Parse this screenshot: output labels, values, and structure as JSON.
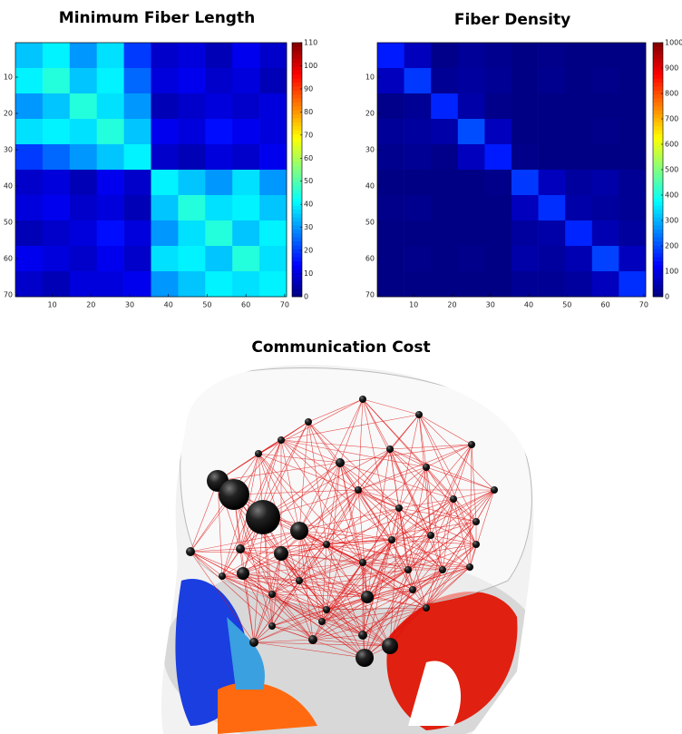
{
  "chart_data": [
    {
      "type": "heatmap",
      "title": "Minimum Fiber Length",
      "colormap": "jet",
      "xlim": [
        0.5,
        70.5
      ],
      "ylim": [
        70.5,
        0.5
      ],
      "zlim": [
        0,
        110
      ],
      "xticks": [
        10,
        20,
        30,
        40,
        50,
        60,
        70
      ],
      "yticks": [
        10,
        20,
        30,
        40,
        50,
        60,
        70
      ],
      "cticks": [
        0,
        10,
        20,
        30,
        40,
        50,
        60,
        70,
        80,
        90,
        100,
        110
      ],
      "z": [
        [
          35,
          40,
          30,
          38,
          20,
          8,
          10,
          6,
          12,
          8
        ],
        [
          40,
          45,
          35,
          40,
          25,
          10,
          12,
          8,
          10,
          6
        ],
        [
          30,
          35,
          45,
          38,
          30,
          6,
          8,
          10,
          8,
          10
        ],
        [
          38,
          40,
          38,
          45,
          35,
          12,
          10,
          15,
          12,
          10
        ],
        [
          20,
          25,
          30,
          35,
          40,
          8,
          6,
          10,
          8,
          12
        ],
        [
          8,
          10,
          6,
          12,
          8,
          40,
          35,
          30,
          38,
          30
        ],
        [
          10,
          12,
          8,
          10,
          6,
          35,
          45,
          38,
          40,
          35
        ],
        [
          6,
          8,
          10,
          15,
          10,
          30,
          38,
          45,
          35,
          40
        ],
        [
          12,
          10,
          8,
          12,
          8,
          38,
          40,
          35,
          45,
          38
        ],
        [
          8,
          6,
          10,
          10,
          12,
          30,
          35,
          40,
          38,
          40
        ]
      ]
    },
    {
      "type": "heatmap",
      "title": "Fiber Density",
      "colormap": "jet",
      "xlim": [
        0.5,
        70.5
      ],
      "ylim": [
        70.5,
        0.5
      ],
      "zlim": [
        0,
        1000
      ],
      "xticks": [
        10,
        20,
        30,
        40,
        50,
        60,
        70
      ],
      "yticks": [
        10,
        20,
        30,
        40,
        50,
        60,
        70
      ],
      "cticks": [
        0,
        100,
        200,
        300,
        400,
        500,
        600,
        700,
        800,
        900,
        1000
      ],
      "z": [
        [
          150,
          60,
          10,
          25,
          15,
          5,
          10,
          5,
          5,
          5
        ],
        [
          60,
          180,
          20,
          30,
          20,
          5,
          15,
          5,
          10,
          5
        ],
        [
          10,
          20,
          160,
          40,
          10,
          5,
          5,
          5,
          5,
          5
        ],
        [
          25,
          30,
          40,
          200,
          60,
          5,
          5,
          5,
          10,
          5
        ],
        [
          15,
          20,
          10,
          60,
          150,
          10,
          5,
          5,
          5,
          5
        ],
        [
          5,
          5,
          5,
          5,
          10,
          180,
          60,
          30,
          40,
          20
        ],
        [
          10,
          15,
          5,
          5,
          5,
          60,
          170,
          40,
          30,
          20
        ],
        [
          5,
          5,
          5,
          5,
          5,
          30,
          40,
          160,
          50,
          30
        ],
        [
          5,
          10,
          5,
          10,
          5,
          40,
          30,
          50,
          190,
          60
        ],
        [
          5,
          5,
          5,
          5,
          5,
          20,
          20,
          30,
          60,
          170
        ]
      ]
    }
  ],
  "figure": {
    "panel_title": "Communication Cost"
  }
}
